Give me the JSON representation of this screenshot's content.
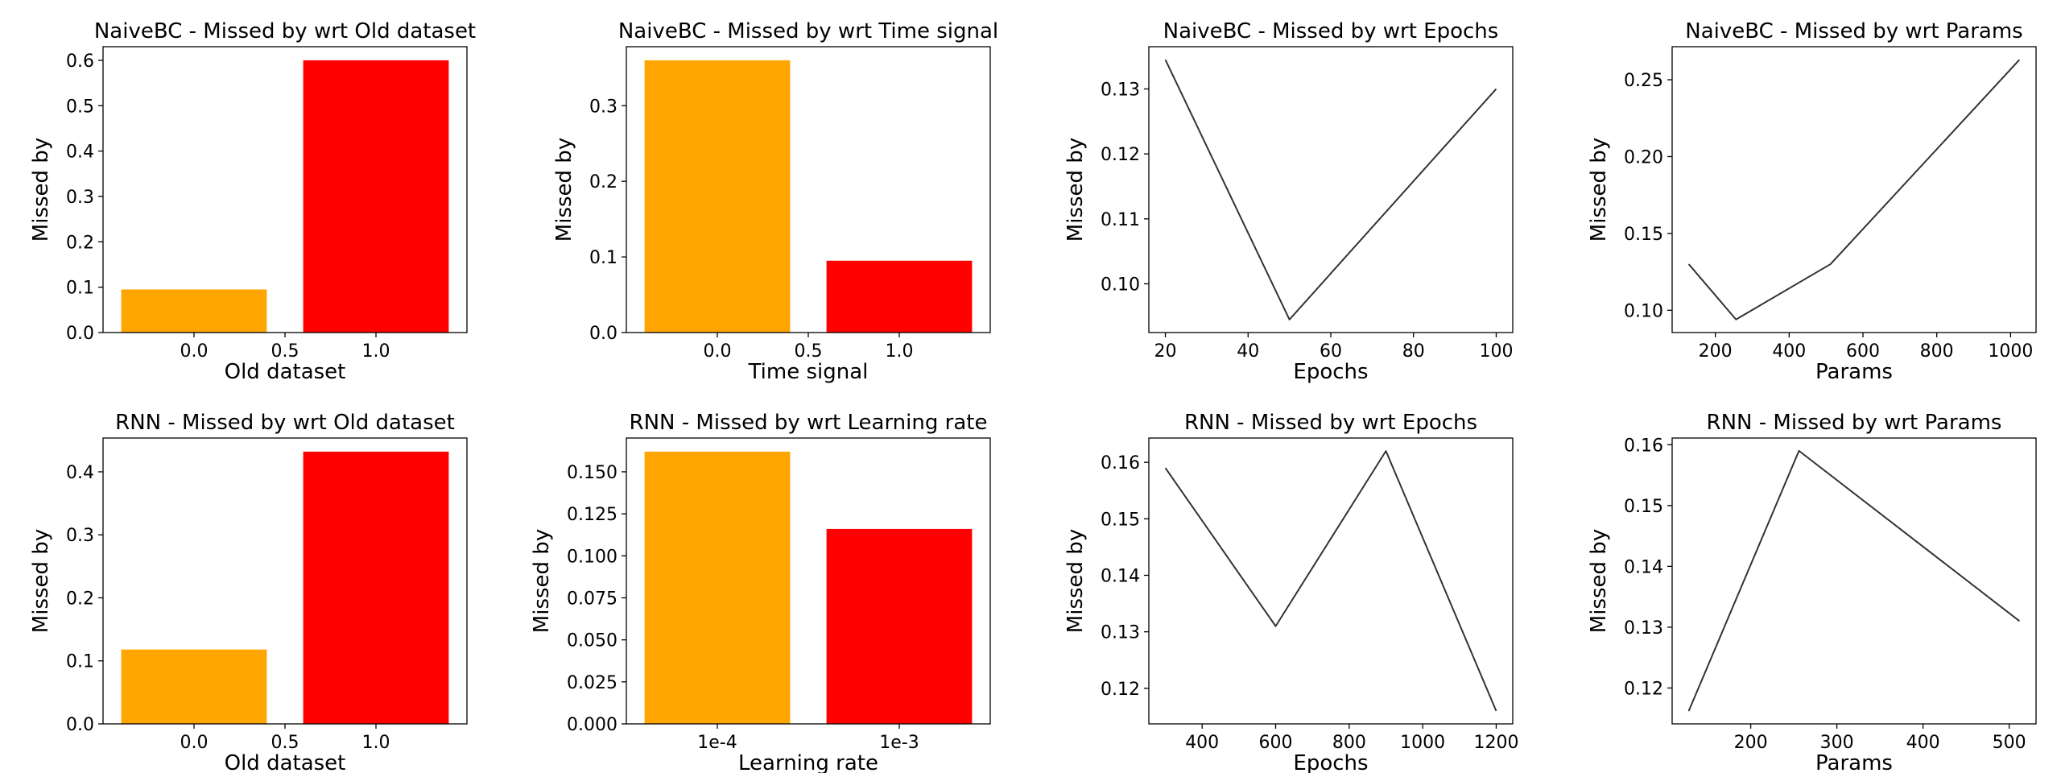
{
  "chart_data": [
    {
      "type": "bar",
      "title": "NaiveBC - Missed by wrt Old dataset",
      "xlabel": "Old dataset",
      "ylabel": "Missed by",
      "bar_centers": [
        0.0,
        1.0
      ],
      "bar_width": 0.8,
      "values": [
        0.095,
        0.6
      ],
      "bar_colors": [
        "#ffa500",
        "#ff0000"
      ],
      "xlim": [
        -0.5,
        1.5
      ],
      "xticks": [
        0.0,
        0.5,
        1.0
      ],
      "xtick_labels": [
        "0.0",
        "0.5",
        "1.0"
      ],
      "ylim": [
        0,
        0.63
      ],
      "yticks": [
        0.0,
        0.1,
        0.2,
        0.3,
        0.4,
        0.5,
        0.6
      ],
      "ytick_labels": [
        "0.0",
        "0.1",
        "0.2",
        "0.3",
        "0.4",
        "0.5",
        "0.6"
      ]
    },
    {
      "type": "bar",
      "title": "NaiveBC - Missed by wrt Time signal",
      "xlabel": "Time signal",
      "ylabel": "Missed by",
      "bar_centers": [
        0.0,
        1.0
      ],
      "bar_width": 0.8,
      "values": [
        0.36,
        0.095
      ],
      "bar_colors": [
        "#ffa500",
        "#ff0000"
      ],
      "xlim": [
        -0.5,
        1.5
      ],
      "xticks": [
        0.0,
        0.5,
        1.0
      ],
      "xtick_labels": [
        "0.0",
        "0.5",
        "1.0"
      ],
      "ylim": [
        0,
        0.378
      ],
      "yticks": [
        0.0,
        0.1,
        0.2,
        0.3
      ],
      "ytick_labels": [
        "0.0",
        "0.1",
        "0.2",
        "0.3"
      ]
    },
    {
      "type": "line",
      "title": "NaiveBC - Missed by wrt Epochs",
      "xlabel": "Epochs",
      "ylabel": "Missed by",
      "x": [
        20,
        50,
        100
      ],
      "y": [
        0.1345,
        0.0945,
        0.13
      ],
      "line_color": "#333333",
      "xlim": [
        16,
        104
      ],
      "xticks": [
        20,
        40,
        60,
        80,
        100
      ],
      "xtick_labels": [
        "20",
        "40",
        "60",
        "80",
        "100"
      ],
      "ylim": [
        0.0925,
        0.1365
      ],
      "yticks": [
        0.1,
        0.11,
        0.12,
        0.13
      ],
      "ytick_labels": [
        "0.10",
        "0.11",
        "0.12",
        "0.13"
      ]
    },
    {
      "type": "line",
      "title": "NaiveBC - Missed by wrt Params",
      "xlabel": "Params",
      "ylabel": "Missed by",
      "x": [
        128,
        256,
        512,
        1024
      ],
      "y": [
        0.13,
        0.094,
        0.13,
        0.263
      ],
      "line_color": "#333333",
      "xlim": [
        83,
        1069
      ],
      "xticks": [
        200,
        400,
        600,
        800,
        1000
      ],
      "xtick_labels": [
        "200",
        "400",
        "600",
        "800",
        "1000"
      ],
      "ylim": [
        0.0855,
        0.2715
      ],
      "yticks": [
        0.1,
        0.15,
        0.2,
        0.25
      ],
      "ytick_labels": [
        "0.10",
        "0.15",
        "0.20",
        "0.25"
      ]
    },
    {
      "type": "bar",
      "title": "RNN - Missed by wrt Old dataset",
      "xlabel": "Old dataset",
      "ylabel": "Missed by",
      "bar_centers": [
        0.0,
        1.0
      ],
      "bar_width": 0.8,
      "values": [
        0.118,
        0.432
      ],
      "bar_colors": [
        "#ffa500",
        "#ff0000"
      ],
      "xlim": [
        -0.5,
        1.5
      ],
      "xticks": [
        0.0,
        0.5,
        1.0
      ],
      "xtick_labels": [
        "0.0",
        "0.5",
        "1.0"
      ],
      "ylim": [
        0,
        0.4536
      ],
      "yticks": [
        0.0,
        0.1,
        0.2,
        0.3,
        0.4
      ],
      "ytick_labels": [
        "0.0",
        "0.1",
        "0.2",
        "0.3",
        "0.4"
      ]
    },
    {
      "type": "bar",
      "title": "RNN - Missed by wrt Learning rate",
      "xlabel": "Learning rate",
      "ylabel": "Missed by",
      "bar_centers": [
        0.0,
        1.0
      ],
      "bar_width": 0.8,
      "categories": [
        "1e-4",
        "1e-3"
      ],
      "values": [
        0.162,
        0.116
      ],
      "bar_colors": [
        "#ffa500",
        "#ff0000"
      ],
      "xlim": [
        -0.5,
        1.5
      ],
      "xticks": [
        0.0,
        1.0
      ],
      "xtick_labels": [
        "1e-4",
        "1e-3"
      ],
      "ylim": [
        0,
        0.1701
      ],
      "yticks": [
        0.0,
        0.025,
        0.05,
        0.075,
        0.1,
        0.125,
        0.15
      ],
      "ytick_labels": [
        "0.000",
        "0.025",
        "0.050",
        "0.075",
        "0.100",
        "0.125",
        "0.150"
      ]
    },
    {
      "type": "line",
      "title": "RNN - Missed by wrt Epochs",
      "xlabel": "Epochs",
      "ylabel": "Missed by",
      "x": [
        300,
        600,
        900,
        1200
      ],
      "y": [
        0.159,
        0.131,
        0.162,
        0.116
      ],
      "line_color": "#333333",
      "xlim": [
        255,
        1245
      ],
      "xticks": [
        400,
        600,
        800,
        1000,
        1200
      ],
      "xtick_labels": [
        "400",
        "600",
        "800",
        "1000",
        "1200"
      ],
      "ylim": [
        0.1137,
        0.1643
      ],
      "yticks": [
        0.12,
        0.13,
        0.14,
        0.15,
        0.16
      ],
      "ytick_labels": [
        "0.12",
        "0.13",
        "0.14",
        "0.15",
        "0.16"
      ]
    },
    {
      "type": "line",
      "title": "RNN - Missed by wrt Params",
      "xlabel": "Params",
      "ylabel": "Missed by",
      "x": [
        128,
        256,
        512
      ],
      "y": [
        0.1162,
        0.159,
        0.131
      ],
      "line_color": "#333333",
      "xlim": [
        108.8,
        531.2
      ],
      "xticks": [
        200,
        300,
        400,
        500
      ],
      "xtick_labels": [
        "200",
        "300",
        "400",
        "500"
      ],
      "ylim": [
        0.1141,
        0.1611
      ],
      "yticks": [
        0.12,
        0.13,
        0.14,
        0.15,
        0.16
      ],
      "ytick_labels": [
        "0.12",
        "0.13",
        "0.14",
        "0.15",
        "0.16"
      ]
    }
  ]
}
